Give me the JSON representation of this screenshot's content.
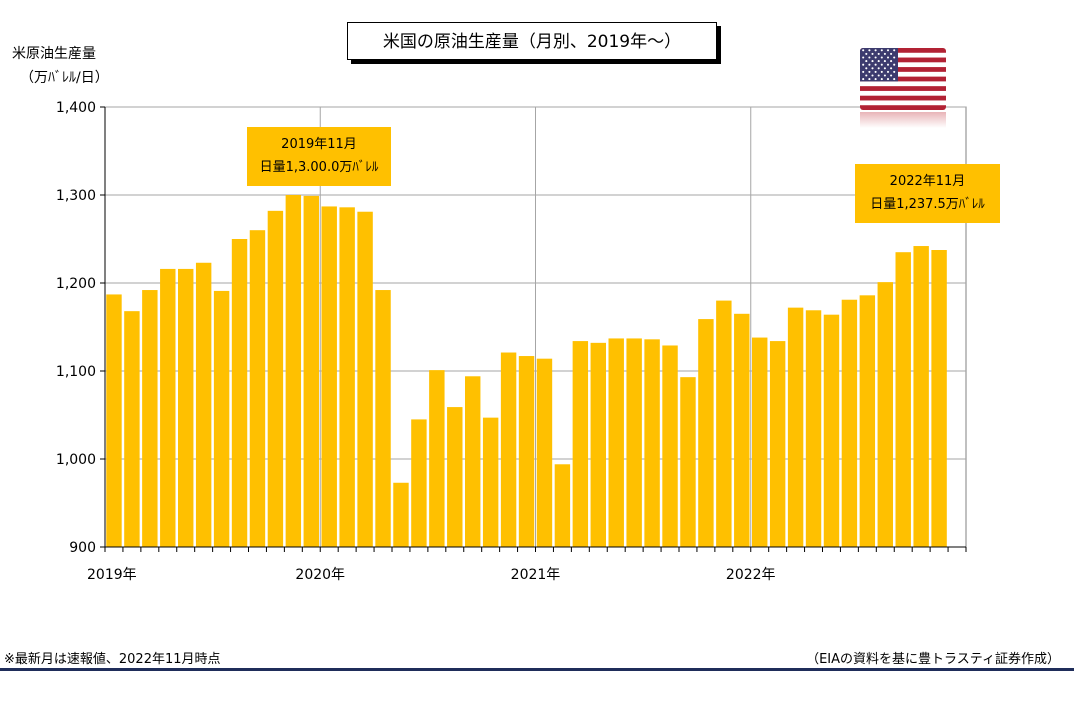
{
  "chart_data": {
    "type": "bar",
    "title": "米国の原油生産量（月別、2019年～）",
    "ylabel_line1": "米原油生産量",
    "ylabel_line2": "（万ﾊﾞﾚﾙ/日）",
    "ylim": [
      900,
      1400
    ],
    "yticks": [
      900,
      1000,
      1100,
      1200,
      1300,
      1400
    ],
    "ytick_labels": [
      "900",
      "1,000",
      "1,100",
      "1,200",
      "1,300",
      "1,400"
    ],
    "x_labels": [
      "2019年",
      "2020年",
      "2021年",
      "2022年"
    ],
    "grid": true,
    "bar_color": "#ffc000",
    "categories": [
      "2019-01",
      "2019-02",
      "2019-03",
      "2019-04",
      "2019-05",
      "2019-06",
      "2019-07",
      "2019-08",
      "2019-09",
      "2019-10",
      "2019-11",
      "2019-12",
      "2020-01",
      "2020-02",
      "2020-03",
      "2020-04",
      "2020-05",
      "2020-06",
      "2020-07",
      "2020-08",
      "2020-09",
      "2020-10",
      "2020-11",
      "2020-12",
      "2021-01",
      "2021-02",
      "2021-03",
      "2021-04",
      "2021-05",
      "2021-06",
      "2021-07",
      "2021-08",
      "2021-09",
      "2021-10",
      "2021-11",
      "2021-12",
      "2022-01",
      "2022-02",
      "2022-03",
      "2022-04",
      "2022-05",
      "2022-06",
      "2022-07",
      "2022-08",
      "2022-09",
      "2022-10",
      "2022-11"
    ],
    "values": [
      1187,
      1168,
      1192,
      1216,
      1216,
      1223,
      1191,
      1250,
      1260,
      1282,
      1300,
      1299,
      1287,
      1286,
      1281,
      1192,
      973,
      1045,
      1101,
      1059,
      1094,
      1047,
      1121,
      1117,
      1114,
      994,
      1134,
      1132,
      1137,
      1137,
      1136,
      1129,
      1093,
      1159,
      1180,
      1165,
      1138,
      1134,
      1172,
      1169,
      1164,
      1181,
      1186,
      1201,
      1235,
      1242,
      1237.5
    ],
    "annotations": [
      {
        "line1": "2019年11月",
        "line2": "日量1,3.00.0万ﾊﾞﾚﾙ"
      },
      {
        "line1": "2022年11月",
        "line2": "日量1,237.5万ﾊﾞﾚﾙ"
      }
    ]
  },
  "notes": {
    "left": "※最新月は速報値、2022年11月時点",
    "right": "（EIAの資料を基に豊トラスティ証券作成）"
  },
  "flag": {
    "name": "us-flag-icon",
    "red": "#b22234",
    "blue": "#3c3b6e"
  }
}
